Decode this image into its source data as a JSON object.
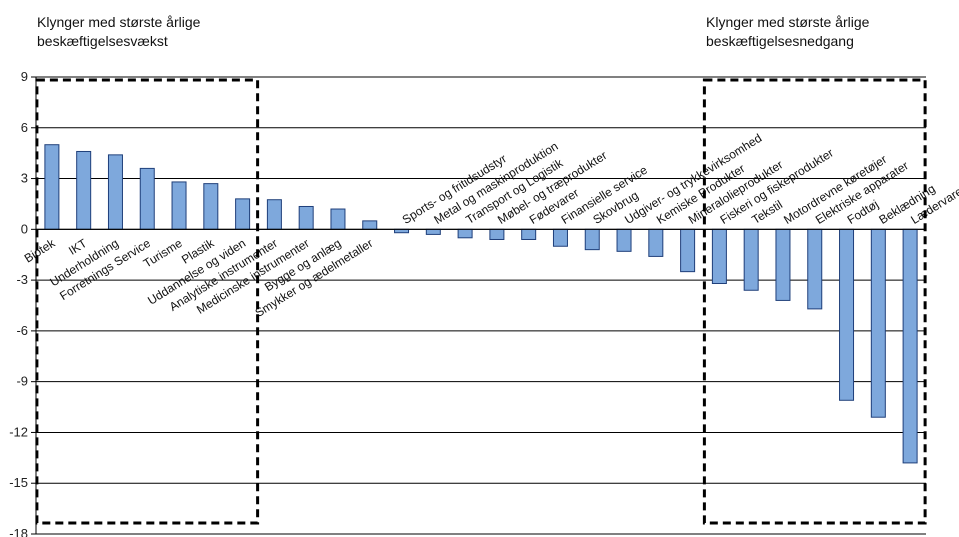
{
  "annotations": {
    "left": {
      "line1": "Klynger med største årlige",
      "line2": "beskæftigelsesvækst"
    },
    "right": {
      "line1": "Klynger med største årlige",
      "line2": "beskæftigelsesnedgang"
    }
  },
  "colors": {
    "bar_fill": "#7ea8dc",
    "bar_stroke": "#1f3f7a",
    "grid": "#000000",
    "box": "#000000"
  },
  "chart_data": {
    "type": "bar",
    "title": "",
    "xlabel": "",
    "ylabel": "",
    "ylim": [
      -18,
      9
    ],
    "yticks": [
      9,
      6,
      3,
      0,
      -3,
      -6,
      -9,
      -12,
      -15,
      -18
    ],
    "grid": true,
    "categories": [
      "Biotek",
      "IKT",
      "Underholdning",
      "Forretnings Service",
      "Turisme",
      "Plastik",
      "Uddannelse og viden",
      "Analytiske instrumenter",
      "Medicinske instrumenter",
      "Bygge og anlæg",
      "Smykker og ædelmetaller",
      "Sports- og fritidsudstyr",
      "Metal og maskinproduktion",
      "Transport og Logistik",
      "Møbel- og træprodukter",
      "Fødevarer",
      "Finansielle service",
      "Skovbrug",
      "Udgiver- og trykkevirksomhed",
      "Kemiske Produkter",
      "Mineralolieprodukter",
      "Fiskeri og fiskeprodukter",
      "Tekstil",
      "Motordrevne køretøjer",
      "Elektriske apparater",
      "Fodtøj",
      "Beklædning",
      "Lædervarer"
    ],
    "values": [
      5.0,
      4.6,
      4.4,
      3.6,
      2.8,
      2.7,
      1.8,
      1.75,
      1.35,
      1.2,
      0.5,
      -0.2,
      -0.3,
      -0.5,
      -0.6,
      -0.6,
      -1.0,
      -1.2,
      -1.3,
      -1.6,
      -2.5,
      -3.2,
      -3.6,
      -4.2,
      -4.7,
      -10.1,
      -11.1,
      -13.8
    ],
    "highlight_groups": [
      {
        "label": "Klynger med største årlige beskæftigelsesvækst",
        "from_index": 0,
        "to_index": 6
      },
      {
        "label": "Klynger med største årlige beskæftigelsesnedgang",
        "from_index": 21,
        "to_index": 27
      }
    ]
  }
}
